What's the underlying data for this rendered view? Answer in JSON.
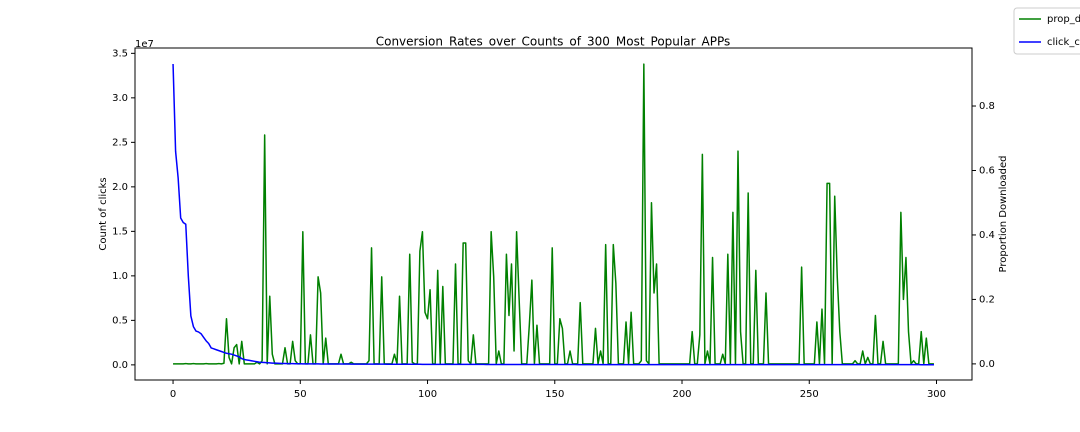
{
  "chart_data": {
    "type": "line",
    "title": "Conversion_Rates_over_Counts_of_300_Most_Popular_APPs",
    "y_label": "Count of clicks",
    "y2_label": "Proportion Downloaded",
    "y_offset_label": "1e7",
    "xlim": [
      -14.95,
      313.95
    ],
    "xticks": [
      0,
      50,
      100,
      150,
      200,
      250,
      300
    ],
    "ylim": [
      -1700000,
      35600000
    ],
    "yticks": [
      {
        "value": 0,
        "label": "0.0"
      },
      {
        "value": 5000000,
        "label": "0.5"
      },
      {
        "value": 10000000,
        "label": "1.0"
      },
      {
        "value": 15000000,
        "label": "1.5"
      },
      {
        "value": 20000000,
        "label": "2.0"
      },
      {
        "value": 25000000,
        "label": "2.5"
      },
      {
        "value": 30000000,
        "label": "3.0"
      },
      {
        "value": 35000000,
        "label": "3.5"
      }
    ],
    "y2lim": [
      -0.05,
      0.98
    ],
    "y2ticks": [
      {
        "value": 0,
        "label": "0.0"
      },
      0.2,
      0.4,
      0.6,
      0.8
    ],
    "x": [
      0,
      1,
      2,
      3,
      4,
      5,
      6,
      7,
      8,
      9,
      10,
      11,
      12,
      13,
      14,
      15,
      16,
      17,
      18,
      19,
      20,
      21,
      22,
      23,
      24,
      25,
      26,
      27,
      28,
      29,
      30,
      31,
      32,
      33,
      34,
      35,
      36,
      37,
      38,
      39,
      40,
      41,
      42,
      43,
      44,
      45,
      46,
      47,
      48,
      49,
      50,
      51,
      52,
      53,
      54,
      55,
      56,
      57,
      58,
      59,
      60,
      61,
      62,
      63,
      64,
      65,
      66,
      67,
      68,
      69,
      70,
      71,
      72,
      73,
      74,
      75,
      76,
      77,
      78,
      79,
      80,
      81,
      82,
      83,
      84,
      85,
      86,
      87,
      88,
      89,
      90,
      91,
      92,
      93,
      94,
      95,
      96,
      97,
      98,
      99,
      100,
      101,
      102,
      103,
      104,
      105,
      106,
      107,
      108,
      109,
      110,
      111,
      112,
      113,
      114,
      115,
      116,
      117,
      118,
      119,
      120,
      121,
      122,
      123,
      124,
      125,
      126,
      127,
      128,
      129,
      130,
      131,
      132,
      133,
      134,
      135,
      136,
      137,
      138,
      139,
      140,
      141,
      142,
      143,
      144,
      145,
      146,
      147,
      148,
      149,
      150,
      151,
      152,
      153,
      154,
      155,
      156,
      157,
      158,
      159,
      160,
      161,
      162,
      163,
      164,
      165,
      166,
      167,
      168,
      169,
      170,
      171,
      172,
      173,
      174,
      175,
      176,
      177,
      178,
      179,
      180,
      181,
      182,
      183,
      184,
      185,
      186,
      187,
      188,
      189,
      190,
      191,
      192,
      193,
      194,
      195,
      196,
      197,
      198,
      199,
      200,
      201,
      202,
      203,
      204,
      205,
      206,
      207,
      208,
      209,
      210,
      211,
      212,
      213,
      214,
      215,
      216,
      217,
      218,
      219,
      220,
      221,
      222,
      223,
      224,
      225,
      226,
      227,
      228,
      229,
      230,
      231,
      232,
      233,
      234,
      235,
      236,
      237,
      238,
      239,
      240,
      241,
      242,
      243,
      244,
      245,
      246,
      247,
      248,
      249,
      250,
      251,
      252,
      253,
      254,
      255,
      256,
      257,
      258,
      259,
      260,
      261,
      262,
      263,
      264,
      265,
      266,
      267,
      268,
      269,
      270,
      271,
      272,
      273,
      274,
      275,
      276,
      277,
      278,
      279,
      280,
      281,
      282,
      283,
      284,
      285,
      286,
      287,
      288,
      289,
      290,
      291,
      292,
      293,
      294,
      295,
      296,
      297,
      298,
      299
    ],
    "series": [
      {
        "name": "prop_d",
        "color": "#008000",
        "axis": "y2",
        "values": [
          0,
          0,
          0,
          0,
          0,
          0.001,
          0,
          0,
          0.001,
          0,
          0,
          0,
          0,
          0.001,
          0,
          0,
          0,
          0,
          0.001,
          0,
          0.002,
          0.14,
          0.02,
          0,
          0.05,
          0.06,
          0,
          0.07,
          0,
          0,
          0,
          0,
          0,
          0.005,
          0,
          0.01,
          0.71,
          0,
          0.21,
          0.03,
          0,
          0,
          0,
          0,
          0.05,
          0,
          0,
          0.07,
          0.01,
          0,
          0,
          0.41,
          0,
          0,
          0.09,
          0,
          0,
          0.27,
          0.22,
          0,
          0.08,
          0,
          0,
          0,
          0,
          0,
          0.03,
          0,
          0,
          0,
          0.005,
          0,
          0,
          0,
          0,
          0,
          0,
          0.01,
          0.36,
          0,
          0,
          0,
          0.27,
          0,
          0,
          0,
          0,
          0.03,
          0,
          0.21,
          0,
          0,
          0,
          0.34,
          0.005,
          0,
          0,
          0.35,
          0.41,
          0.16,
          0.14,
          0.23,
          0,
          0,
          0.29,
          0,
          0.24,
          0,
          0,
          0,
          0,
          0.31,
          0,
          0,
          0.375,
          0.375,
          0.01,
          0,
          0.09,
          0,
          0,
          0,
          0,
          0,
          0,
          0.41,
          0.27,
          0,
          0.04,
          0,
          0,
          0.34,
          0.15,
          0.31,
          0.04,
          0.41,
          0.2,
          0,
          0,
          0,
          0.12,
          0.26,
          0,
          0.12,
          0,
          0,
          0,
          0,
          0,
          0.36,
          0,
          0,
          0.14,
          0.11,
          0,
          0,
          0.04,
          0,
          0,
          0,
          0.19,
          0,
          0,
          0,
          0,
          0,
          0.11,
          0,
          0.04,
          0,
          0.37,
          0,
          0,
          0.37,
          0.25,
          0,
          0,
          0,
          0.13,
          0,
          0.16,
          0,
          0,
          0,
          0.01,
          0.93,
          0.01,
          0,
          0.5,
          0.22,
          0.31,
          0,
          0,
          0,
          0,
          0,
          0,
          0,
          0,
          0,
          0,
          0,
          0,
          0,
          0.1,
          0,
          0,
          0.09,
          0.65,
          0,
          0.04,
          0,
          0.33,
          0,
          0,
          0,
          0.03,
          0,
          0.34,
          0,
          0.47,
          0,
          0.66,
          0.1,
          0,
          0,
          0.53,
          0,
          0,
          0.29,
          0,
          0,
          0,
          0.22,
          0,
          0,
          0,
          0,
          0,
          0,
          0,
          0,
          0,
          0,
          0,
          0,
          0,
          0.3,
          0,
          0,
          0,
          0,
          0,
          0.13,
          0,
          0.17,
          0,
          0.56,
          0.56,
          0,
          0.52,
          0.27,
          0.1,
          0,
          0,
          0,
          0,
          0,
          0.01,
          0,
          0,
          0.04,
          0,
          0.02,
          0,
          0,
          0.15,
          0,
          0,
          0.07,
          0,
          0,
          0,
          0,
          0,
          0,
          0.47,
          0.2,
          0.33,
          0.1,
          0,
          0.01,
          0,
          0,
          0.1,
          0,
          0.08,
          0,
          0,
          0
        ]
      },
      {
        "name": "click_co",
        "color": "#0000ff",
        "axis": "y",
        "values": [
          33800000,
          24000000,
          21000000,
          16500000,
          16000000,
          15800000,
          10000000,
          5500000,
          4300000,
          3800000,
          3700000,
          3500000,
          3100000,
          2700000,
          2400000,
          1900000,
          1800000,
          1700000,
          1600000,
          1500000,
          1400000,
          1300000,
          1250000,
          1200000,
          1100000,
          1000000,
          900000,
          700000,
          600000,
          550000,
          500000,
          450000,
          400000,
          350000,
          300000,
          280000,
          260000,
          240000,
          220000,
          200000,
          190000,
          180000,
          170000,
          160000,
          150000,
          145000,
          140000,
          135000,
          130000,
          125000,
          120000,
          118000,
          116000,
          114000,
          112000,
          110000,
          108000,
          106000,
          104000,
          102000,
          100000,
          99000,
          98000,
          97000,
          96000,
          95000,
          94000,
          93000,
          92000,
          91000,
          90000,
          89000,
          88000,
          87000,
          86000,
          85000,
          84000,
          83000,
          82000,
          81000,
          80000,
          79000,
          78000,
          77000,
          76000,
          75000,
          74000,
          73000,
          72000,
          71000,
          70000,
          69000,
          68000,
          67000,
          66000,
          65000,
          64000,
          63000,
          62000,
          61000,
          60000,
          59500,
          59000,
          58500,
          58000,
          57500,
          57000,
          56500,
          56000,
          55500,
          55000,
          54500,
          54000,
          53500,
          53000,
          52500,
          52000,
          51500,
          51000,
          50500,
          50000,
          49500,
          49000,
          48500,
          48000,
          47500,
          47000,
          46500,
          46000,
          45500,
          45000,
          44500,
          44000,
          43500,
          43000,
          42500,
          42000,
          41500,
          41000,
          40500,
          40000,
          39500,
          39000,
          38500,
          38000,
          37500,
          37000,
          36500,
          36000,
          35500,
          35000,
          34900,
          34800,
          34700,
          34600,
          34500,
          34400,
          34300,
          34200,
          34100,
          34000,
          33900,
          33800,
          33700,
          33600,
          33500,
          33400,
          33300,
          33200,
          33100,
          33000,
          32900,
          32800,
          32700,
          32600,
          32500,
          32400,
          32300,
          32200,
          32100,
          32000,
          31900,
          31800,
          31700,
          31600,
          31500,
          31400,
          31300,
          31200,
          31100,
          31000,
          30900,
          30800,
          30700,
          30600,
          30500,
          30400,
          30300,
          30200,
          30100,
          30000,
          29900,
          29800,
          29700,
          29600,
          29500,
          29400,
          29300,
          29200,
          29100,
          29000,
          28900,
          28800,
          28700,
          28600,
          28500,
          28400,
          28300,
          28200,
          28100,
          28000,
          27900,
          27800,
          27700,
          27600,
          27500,
          27400,
          27300,
          27200,
          27100,
          27000,
          26900,
          26800,
          26700,
          26600,
          26500,
          26400,
          26300,
          26200,
          26100,
          26000,
          25900,
          25800,
          25700,
          25600,
          25500,
          25400,
          25300,
          25200,
          25100,
          25000,
          24900,
          24800,
          24700,
          24600,
          24500,
          24400,
          24300,
          24200,
          24100,
          24000,
          23900,
          23800,
          23700,
          23600,
          23500,
          23400,
          23300,
          23200,
          23100,
          23000,
          22900,
          22800,
          22700,
          22600,
          22500,
          22400,
          22300,
          22200,
          22100,
          22000,
          21900,
          21800,
          21700,
          21600,
          21500,
          21400,
          21300,
          21200,
          21100,
          21000,
          20900,
          20800,
          20700,
          20600,
          20500,
          20400,
          20300,
          20200,
          20100
        ]
      }
    ]
  }
}
